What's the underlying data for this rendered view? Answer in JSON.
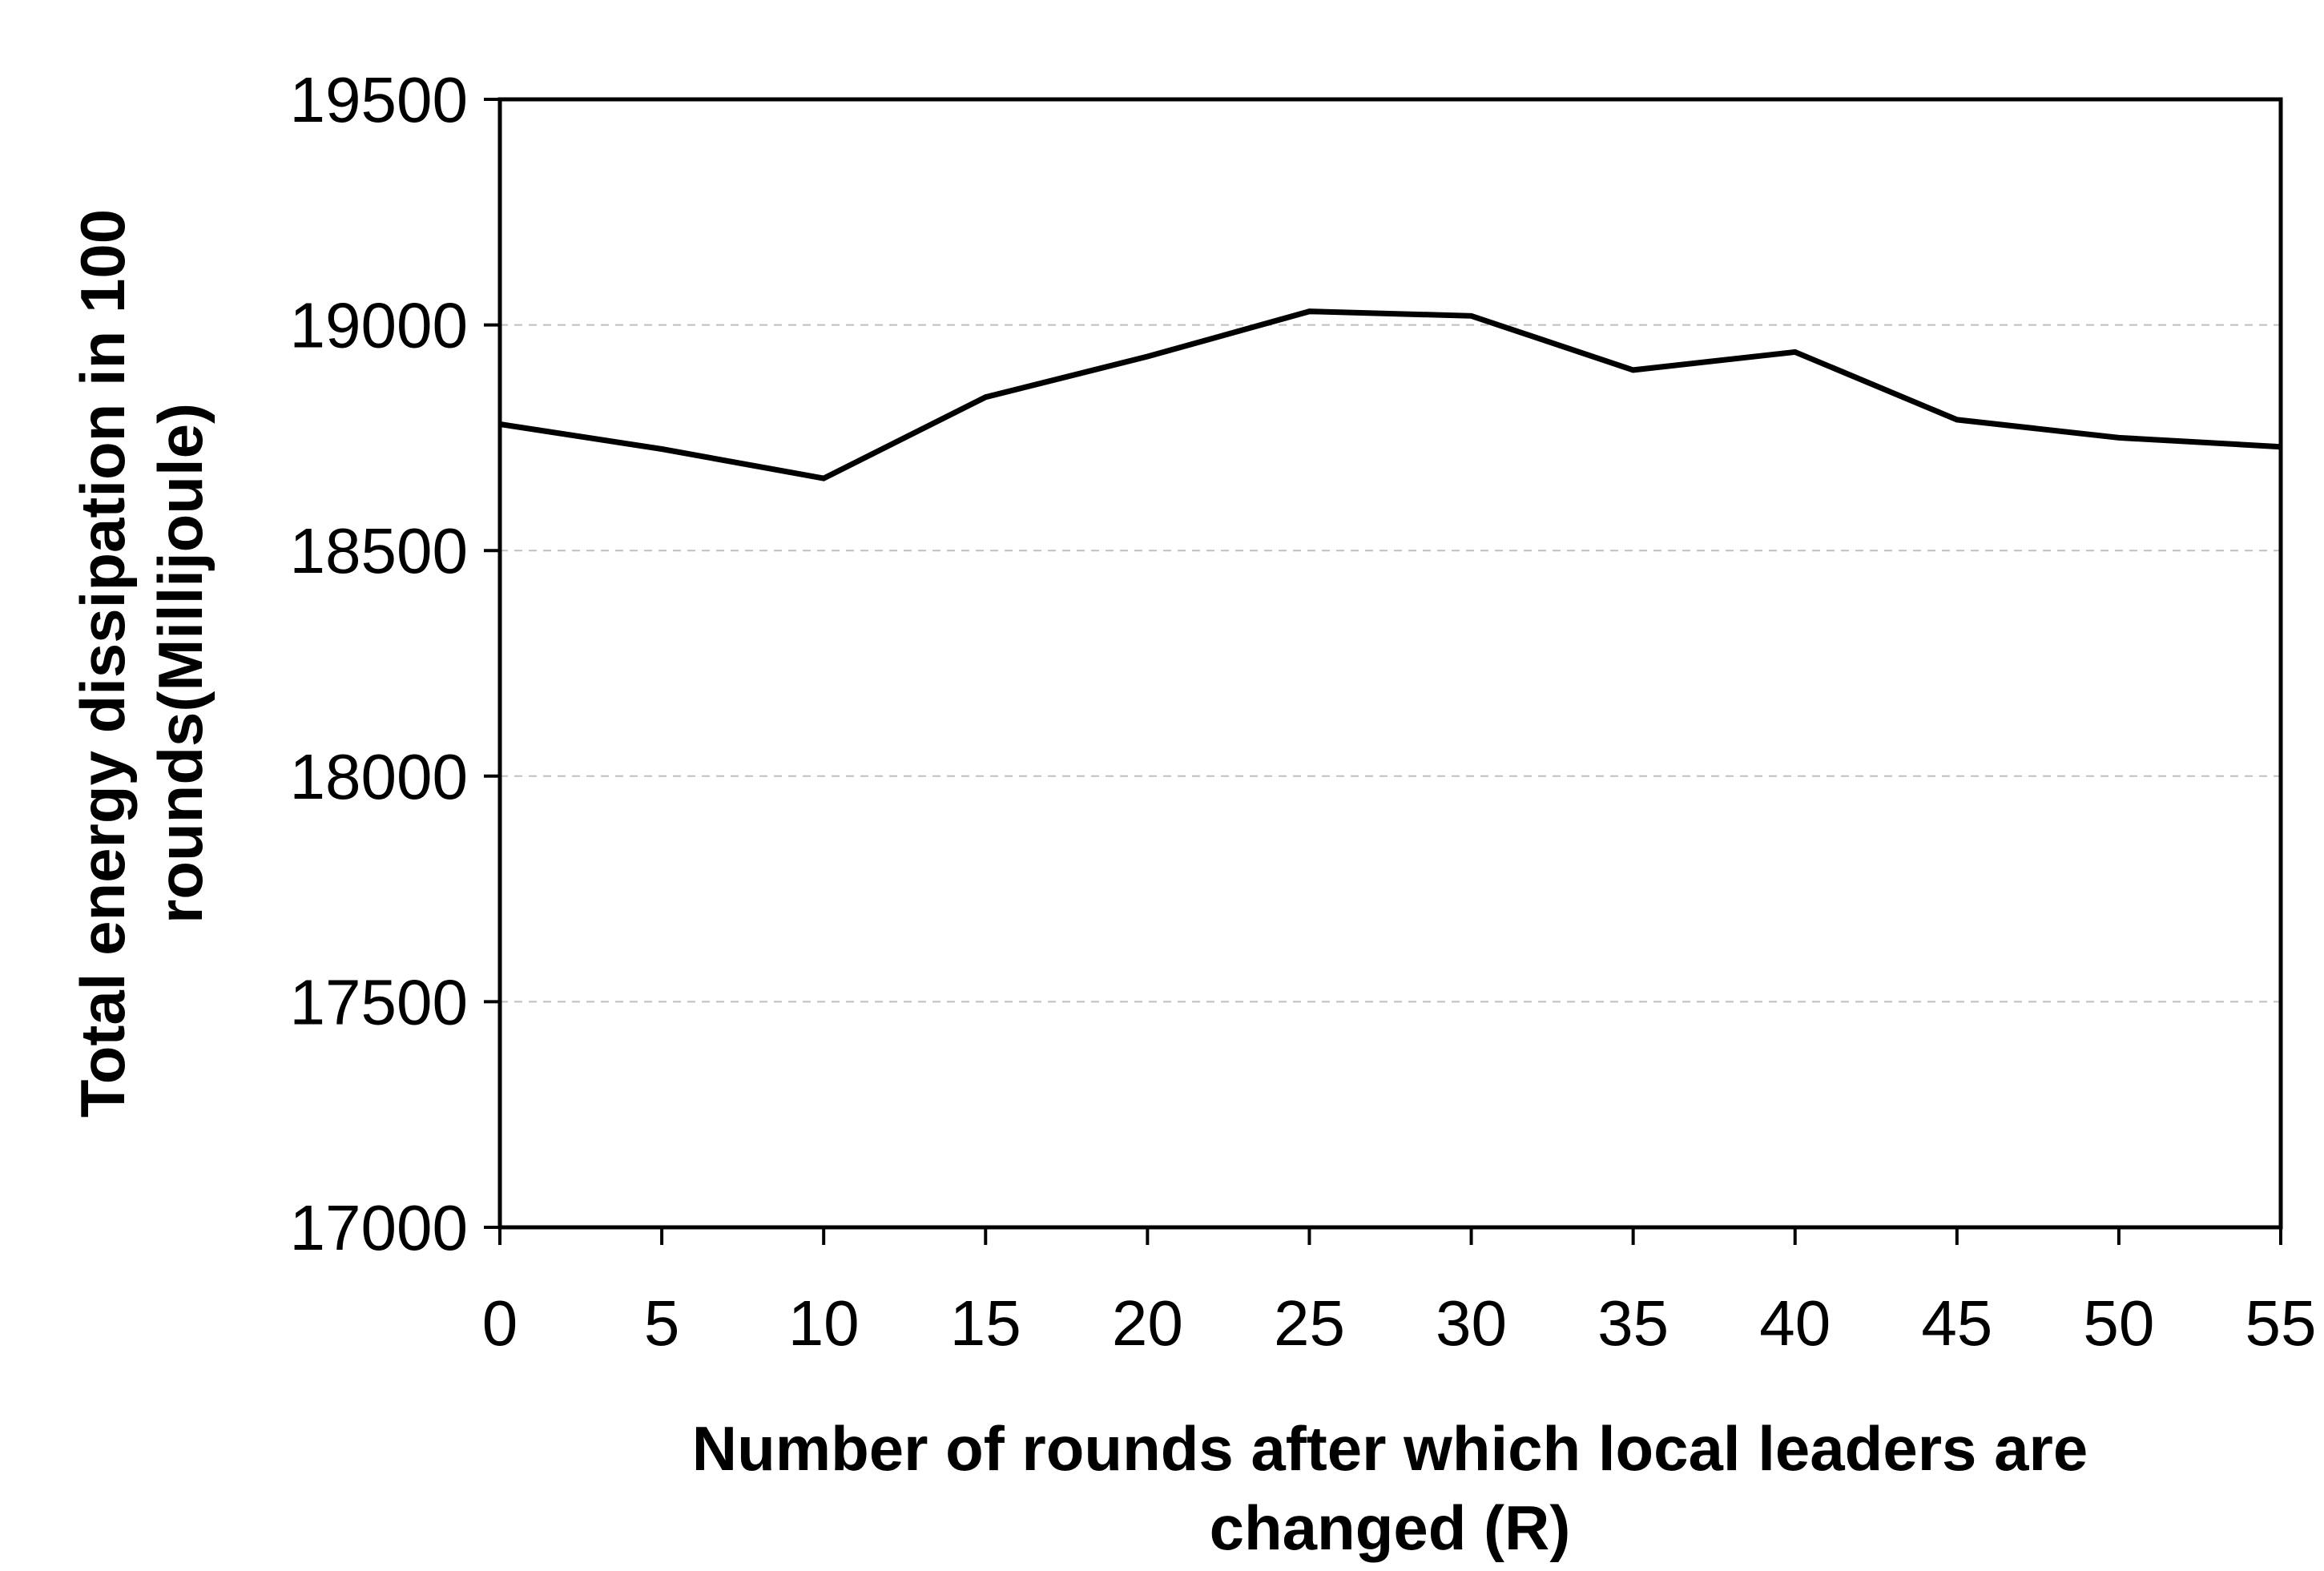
{
  "chart_data": {
    "type": "line",
    "title": "",
    "xlabel": {
      "lines": [
        "Number of rounds after which local leaders are",
        "changed (R)"
      ]
    },
    "ylabel": {
      "lines": [
        "Total energy dissipation in 100",
        "rounds(Millijoule)"
      ]
    },
    "x": [
      0,
      5,
      10,
      15,
      20,
      25,
      30,
      35,
      40,
      45,
      50,
      55
    ],
    "series": [
      {
        "values": [
          18780,
          18725,
          18660,
          18840,
          18930,
          19030,
          19020,
          18900,
          18940,
          18790,
          18750,
          18730
        ]
      }
    ],
    "xlim": [
      0,
      55
    ],
    "ylim": [
      17000,
      19500
    ],
    "x_ticks": [
      "0",
      "5",
      "10",
      "15",
      "20",
      "25",
      "30",
      "35",
      "40",
      "45",
      "50",
      "55"
    ],
    "y_ticks": [
      "17000",
      "17500",
      "18000",
      "18500",
      "19000",
      "19500"
    ],
    "grid": "horizontal dashed",
    "line_color": "#000000",
    "grid_color": "#bfbfbf"
  }
}
